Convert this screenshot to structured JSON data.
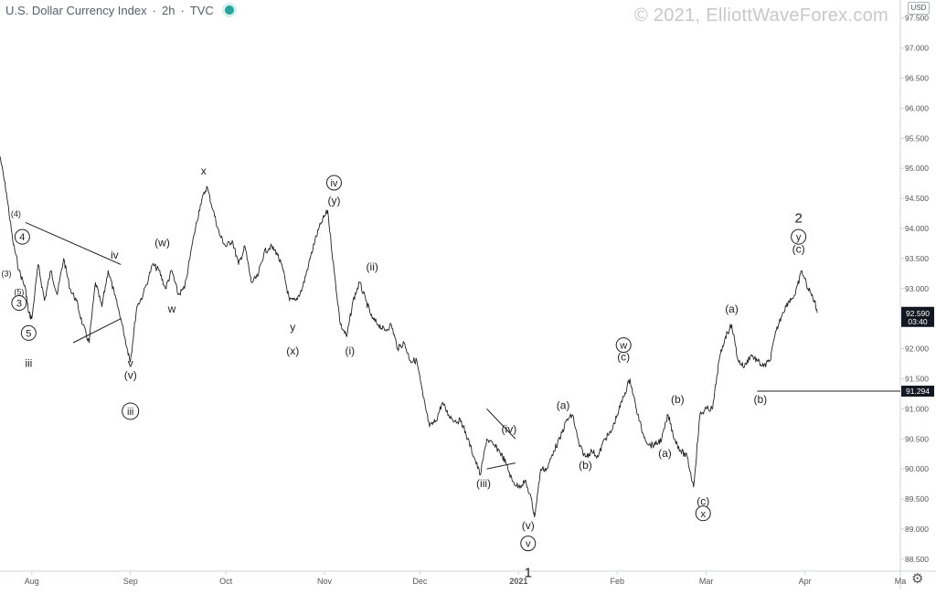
{
  "header": {
    "symbol": "U.S. Dollar Currency Index",
    "interval": "2h",
    "source": "TVC",
    "watermark": "© 2021, ElliottWaveForex.com",
    "currency": "USD"
  },
  "colors": {
    "line": "#222222",
    "axis_text": "#555555",
    "axis_line": "#cfd3da",
    "price_tag": "#131722",
    "live": "#26a69a"
  },
  "icons": {
    "settings": "gear-icon"
  },
  "chart_data": {
    "type": "line",
    "title": "U.S. Dollar Currency Index · 2h · TVC",
    "ylim": [
      88.3,
      97.8
    ],
    "xlim": [
      "2020-07-22",
      "2021-05-01"
    ],
    "y_ticks": [
      "97.500",
      "97.000",
      "96.500",
      "96.000",
      "95.500",
      "95.000",
      "94.500",
      "94.000",
      "93.500",
      "93.000",
      "92.500",
      "92.000",
      "91.500",
      "91.000",
      "90.500",
      "90.000",
      "89.500",
      "89.000",
      "88.500"
    ],
    "x_ticks": [
      {
        "date": "2020-08-01",
        "label": "Aug"
      },
      {
        "date": "2020-09-01",
        "label": "Sep"
      },
      {
        "date": "2020-10-01",
        "label": "Oct"
      },
      {
        "date": "2020-11-01",
        "label": "Nov"
      },
      {
        "date": "2020-12-01",
        "label": "Dec"
      },
      {
        "date": "2021-01-01",
        "label": "2021"
      },
      {
        "date": "2021-02-01",
        "label": "Feb"
      },
      {
        "date": "2021-03-01",
        "label": "Mar"
      },
      {
        "date": "2021-04-01",
        "label": "Apr"
      },
      {
        "date": "2021-05-01",
        "label": "Ma"
      }
    ],
    "series": [
      {
        "points": [
          [
            "2020-07-22",
            95.2
          ],
          [
            "2020-07-24",
            94.6
          ],
          [
            "2020-07-26",
            93.8
          ],
          [
            "2020-07-28",
            93.3
          ],
          [
            "2020-07-30",
            93.0
          ],
          [
            "2020-07-31",
            92.6
          ],
          [
            "2020-08-01",
            92.5
          ],
          [
            "2020-08-03",
            93.4
          ],
          [
            "2020-08-05",
            92.8
          ],
          [
            "2020-08-07",
            93.3
          ],
          [
            "2020-08-09",
            92.9
          ],
          [
            "2020-08-11",
            93.5
          ],
          [
            "2020-08-13",
            93.0
          ],
          [
            "2020-08-15",
            92.8
          ],
          [
            "2020-08-17",
            92.4
          ],
          [
            "2020-08-19",
            92.1
          ],
          [
            "2020-08-21",
            93.1
          ],
          [
            "2020-08-23",
            92.7
          ],
          [
            "2020-08-25",
            93.3
          ],
          [
            "2020-08-27",
            92.9
          ],
          [
            "2020-08-29",
            92.5
          ],
          [
            "2020-08-31",
            92.0
          ],
          [
            "2020-09-01",
            91.8
          ],
          [
            "2020-09-03",
            92.7
          ],
          [
            "2020-09-05",
            92.9
          ],
          [
            "2020-09-08",
            93.4
          ],
          [
            "2020-09-10",
            93.3
          ],
          [
            "2020-09-12",
            93.0
          ],
          [
            "2020-09-14",
            93.3
          ],
          [
            "2020-09-16",
            92.9
          ],
          [
            "2020-09-18",
            93.0
          ],
          [
            "2020-09-21",
            93.9
          ],
          [
            "2020-09-23",
            94.4
          ],
          [
            "2020-09-25",
            94.7
          ],
          [
            "2020-09-27",
            94.3
          ],
          [
            "2020-09-29",
            93.9
          ],
          [
            "2020-10-01",
            93.7
          ],
          [
            "2020-10-03",
            93.8
          ],
          [
            "2020-10-05",
            93.4
          ],
          [
            "2020-10-07",
            93.7
          ],
          [
            "2020-10-09",
            93.1
          ],
          [
            "2020-10-11",
            93.2
          ],
          [
            "2020-10-13",
            93.6
          ],
          [
            "2020-10-15",
            93.7
          ],
          [
            "2020-10-17",
            93.6
          ],
          [
            "2020-10-19",
            93.3
          ],
          [
            "2020-10-21",
            92.8
          ],
          [
            "2020-10-23",
            92.8
          ],
          [
            "2020-10-25",
            93.0
          ],
          [
            "2020-10-27",
            93.4
          ],
          [
            "2020-10-29",
            93.8
          ],
          [
            "2020-10-31",
            94.1
          ],
          [
            "2020-11-02",
            94.3
          ],
          [
            "2020-11-04",
            93.3
          ],
          [
            "2020-11-06",
            92.4
          ],
          [
            "2020-11-08",
            92.2
          ],
          [
            "2020-11-10",
            92.8
          ],
          [
            "2020-11-12",
            93.1
          ],
          [
            "2020-11-14",
            92.8
          ],
          [
            "2020-11-16",
            92.5
          ],
          [
            "2020-11-18",
            92.4
          ],
          [
            "2020-11-20",
            92.3
          ],
          [
            "2020-11-22",
            92.4
          ],
          [
            "2020-11-24",
            92.0
          ],
          [
            "2020-11-26",
            92.1
          ],
          [
            "2020-11-28",
            91.8
          ],
          [
            "2020-11-30",
            91.8
          ],
          [
            "2020-12-02",
            91.2
          ],
          [
            "2020-12-04",
            90.7
          ],
          [
            "2020-12-06",
            90.8
          ],
          [
            "2020-12-08",
            91.1
          ],
          [
            "2020-12-10",
            90.9
          ],
          [
            "2020-12-12",
            90.8
          ],
          [
            "2020-12-14",
            90.8
          ],
          [
            "2020-12-16",
            90.5
          ],
          [
            "2020-12-18",
            90.2
          ],
          [
            "2020-12-20",
            89.9
          ],
          [
            "2020-12-22",
            90.5
          ],
          [
            "2020-12-24",
            90.4
          ],
          [
            "2020-12-26",
            90.3
          ],
          [
            "2020-12-28",
            90.1
          ],
          [
            "2020-12-30",
            89.8
          ],
          [
            "2021-01-01",
            89.7
          ],
          [
            "2021-01-03",
            89.8
          ],
          [
            "2021-01-05",
            89.5
          ],
          [
            "2021-01-06",
            89.2
          ],
          [
            "2021-01-08",
            90.0
          ],
          [
            "2021-01-10",
            90.0
          ],
          [
            "2021-01-12",
            90.3
          ],
          [
            "2021-01-14",
            90.5
          ],
          [
            "2021-01-16",
            90.8
          ],
          [
            "2021-01-18",
            90.9
          ],
          [
            "2021-01-20",
            90.4
          ],
          [
            "2021-01-22",
            90.2
          ],
          [
            "2021-01-24",
            90.3
          ],
          [
            "2021-01-26",
            90.2
          ],
          [
            "2021-01-28",
            90.5
          ],
          [
            "2021-01-30",
            90.6
          ],
          [
            "2021-02-01",
            90.9
          ],
          [
            "2021-02-03",
            91.2
          ],
          [
            "2021-02-05",
            91.5
          ],
          [
            "2021-02-07",
            91.0
          ],
          [
            "2021-02-09",
            90.6
          ],
          [
            "2021-02-11",
            90.4
          ],
          [
            "2021-02-13",
            90.4
          ],
          [
            "2021-02-15",
            90.5
          ],
          [
            "2021-02-17",
            90.9
          ],
          [
            "2021-02-19",
            90.5
          ],
          [
            "2021-02-21",
            90.3
          ],
          [
            "2021-02-23",
            90.2
          ],
          [
            "2021-02-25",
            89.7
          ],
          [
            "2021-02-27",
            90.9
          ],
          [
            "2021-03-01",
            91.0
          ],
          [
            "2021-03-03",
            91.0
          ],
          [
            "2021-03-05",
            91.8
          ],
          [
            "2021-03-07",
            92.2
          ],
          [
            "2021-03-09",
            92.4
          ],
          [
            "2021-03-11",
            91.8
          ],
          [
            "2021-03-13",
            91.7
          ],
          [
            "2021-03-15",
            91.9
          ],
          [
            "2021-03-17",
            91.8
          ],
          [
            "2021-03-19",
            91.7
          ],
          [
            "2021-03-21",
            91.8
          ],
          [
            "2021-03-23",
            92.3
          ],
          [
            "2021-03-25",
            92.6
          ],
          [
            "2021-03-27",
            92.8
          ],
          [
            "2021-03-29",
            92.9
          ],
          [
            "2021-03-31",
            93.3
          ],
          [
            "2021-04-02",
            93.0
          ],
          [
            "2021-04-04",
            92.8
          ],
          [
            "2021-04-05",
            92.6
          ]
        ]
      }
    ],
    "annotations": [
      {
        "text": "(4)",
        "x": "2020-07-27",
        "y": 94.2
      },
      {
        "text": "4",
        "x": "2020-07-29",
        "y": 93.8,
        "circled": true
      },
      {
        "text": "(3)",
        "x": "2020-07-24",
        "y": 93.2
      },
      {
        "text": "(5)",
        "x": "2020-07-28",
        "y": 92.9
      },
      {
        "text": "3",
        "x": "2020-07-28",
        "y": 92.7,
        "circled": true
      },
      {
        "text": "5",
        "x": "2020-07-31",
        "y": 92.2,
        "circled": true
      },
      {
        "text": "iii",
        "x": "2020-07-31",
        "y": 91.7
      },
      {
        "text": "iv",
        "x": "2020-08-27",
        "y": 93.5
      },
      {
        "text": "v",
        "x": "2020-09-01",
        "y": 91.7
      },
      {
        "text": "(v)",
        "x": "2020-09-01",
        "y": 91.5
      },
      {
        "text": "iii",
        "x": "2020-09-01",
        "y": 90.9,
        "circled": true
      },
      {
        "text": "(w)",
        "x": "2020-09-11",
        "y": 93.7
      },
      {
        "text": "w",
        "x": "2020-09-14",
        "y": 92.6
      },
      {
        "text": "x",
        "x": "2020-09-24",
        "y": 94.9
      },
      {
        "text": "y",
        "x": "2020-10-22",
        "y": 92.3
      },
      {
        "text": "(x)",
        "x": "2020-10-22",
        "y": 91.9
      },
      {
        "text": "iv",
        "x": "2020-11-04",
        "y": 94.7,
        "circled": true
      },
      {
        "text": "(y)",
        "x": "2020-11-04",
        "y": 94.4
      },
      {
        "text": "(ii)",
        "x": "2020-11-16",
        "y": 93.3
      },
      {
        "text": "(i)",
        "x": "2020-11-09",
        "y": 91.9
      },
      {
        "text": "(iii)",
        "x": "2020-12-21",
        "y": 89.7
      },
      {
        "text": "(iv)",
        "x": "2020-12-29",
        "y": 90.6
      },
      {
        "text": "(v)",
        "x": "2021-01-04",
        "y": 89.0
      },
      {
        "text": "v",
        "x": "2021-01-04",
        "y": 88.7,
        "circled": true
      },
      {
        "text": "1",
        "x": "2021-01-04",
        "y": 88.2
      },
      {
        "text": "(a)",
        "x": "2021-01-15",
        "y": 91.0
      },
      {
        "text": "(b)",
        "x": "2021-01-22",
        "y": 90.0
      },
      {
        "text": "w",
        "x": "2021-02-03",
        "y": 92.0,
        "circled": true
      },
      {
        "text": "(c)",
        "x": "2021-02-03",
        "y": 91.8
      },
      {
        "text": "(a)",
        "x": "2021-02-16",
        "y": 90.2
      },
      {
        "text": "(b)",
        "x": "2021-02-20",
        "y": 91.1
      },
      {
        "text": "(c)",
        "x": "2021-02-28",
        "y": 89.4
      },
      {
        "text": "x",
        "x": "2021-02-28",
        "y": 89.2,
        "circled": true
      },
      {
        "text": "(a)",
        "x": "2021-03-09",
        "y": 92.6
      },
      {
        "text": "(b)",
        "x": "2021-03-18",
        "y": 91.1
      },
      {
        "text": "2",
        "x": "2021-03-30",
        "y": 94.1
      },
      {
        "text": "y",
        "x": "2021-03-30",
        "y": 93.8,
        "circled": true
      },
      {
        "text": "(c)",
        "x": "2021-03-30",
        "y": 93.6
      }
    ],
    "trendlines": [
      {
        "from": [
          "2020-07-30",
          94.1
        ],
        "to": [
          "2020-08-29",
          93.4
        ]
      },
      {
        "from": [
          "2020-08-14",
          92.1
        ],
        "to": [
          "2020-08-29",
          92.5
        ]
      },
      {
        "from": [
          "2020-12-22",
          91.0
        ],
        "to": [
          "2020-12-31",
          90.5
        ]
      },
      {
        "from": [
          "2020-12-22",
          90.0
        ],
        "to": [
          "2020-12-31",
          90.1
        ]
      }
    ],
    "price_labels": [
      {
        "value": "92.590",
        "sub": "03:40"
      },
      {
        "value": "91.294"
      }
    ],
    "horizontal_lines": [
      {
        "from": "2021-03-17",
        "y": 91.294
      }
    ]
  }
}
